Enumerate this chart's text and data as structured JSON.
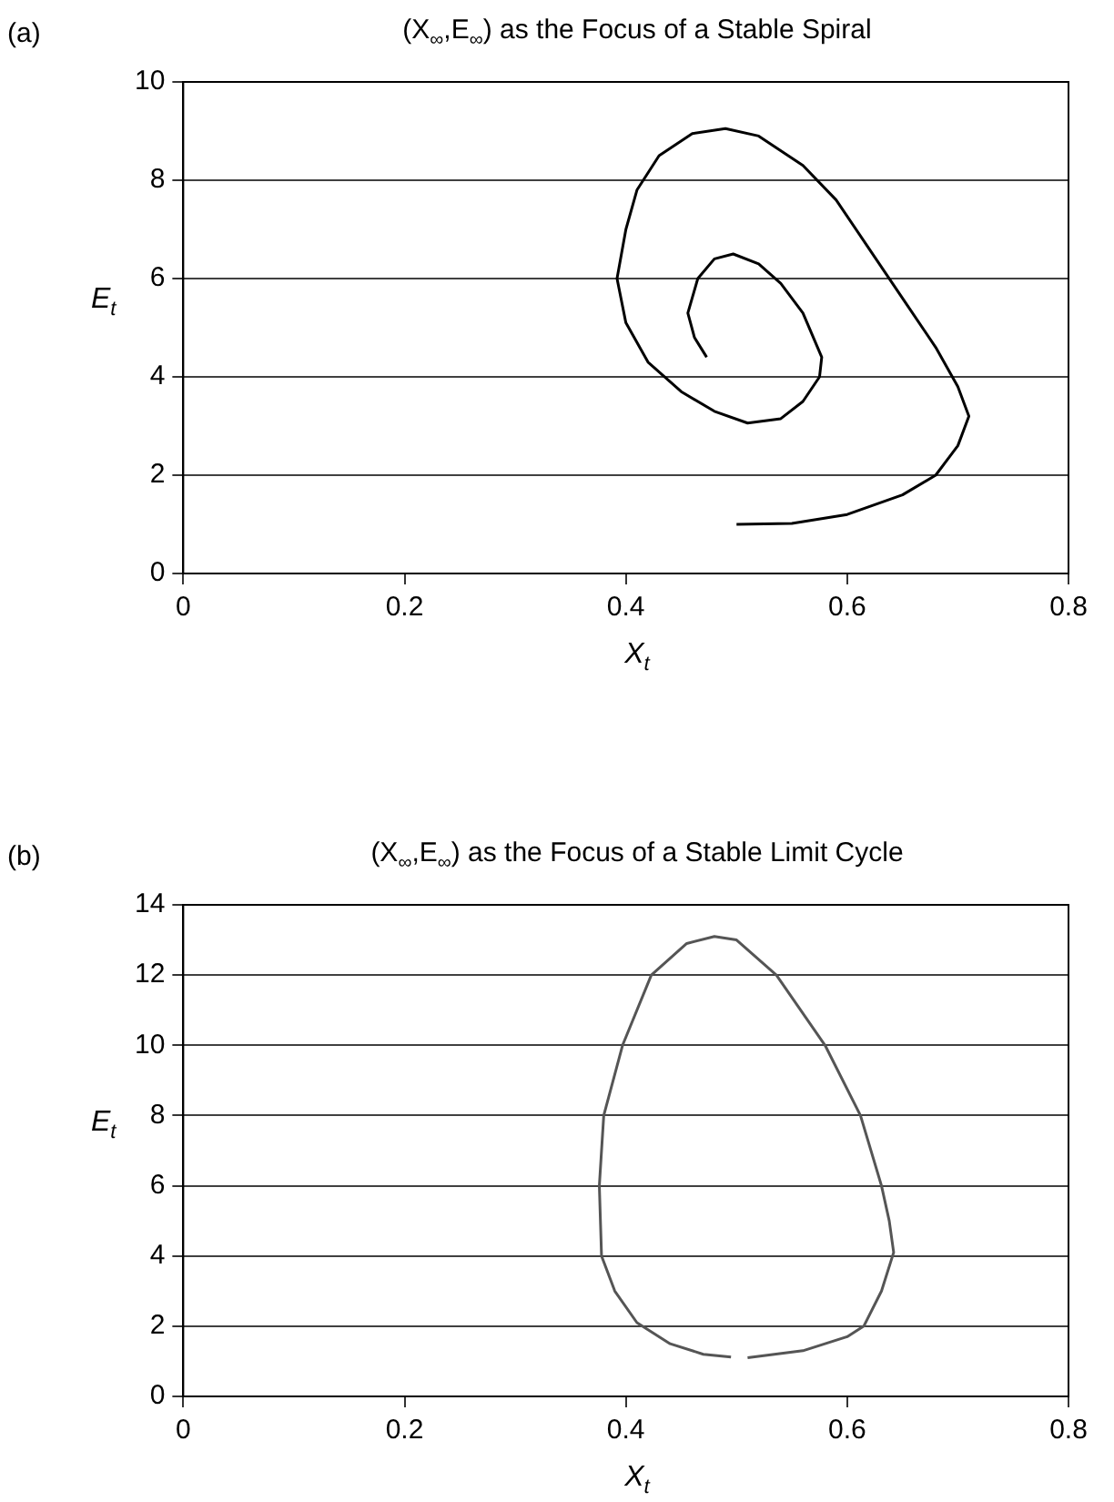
{
  "chart_data": [
    {
      "type": "line",
      "title": "(X$_{∞}$,E$_{∞}$) as the Focus of a Stable Spiral",
      "xlabel": "X$_{t}$",
      "ylabel": "E$_{t}$",
      "annotations": [
        "(a)"
      ],
      "xlim": [
        0,
        0.8
      ],
      "xticks": [
        0,
        0.2,
        0.4,
        0.6,
        0.8
      ],
      "ylim": [
        0,
        10
      ],
      "yticks": [
        0,
        2,
        4,
        6,
        8,
        10
      ],
      "grid": "y",
      "legend": false,
      "marker": "none",
      "line_style": "solid",
      "series": [
        {
          "color": "#000000",
          "x": [
            0.5,
            0.55,
            0.6,
            0.65,
            0.68,
            0.7,
            0.71,
            0.7,
            0.68,
            0.65,
            0.62,
            0.59,
            0.56,
            0.52,
            0.49,
            0.46,
            0.43,
            0.41,
            0.4,
            0.392,
            0.4,
            0.42,
            0.45,
            0.48,
            0.51,
            0.54,
            0.56,
            0.575,
            0.577,
            0.56,
            0.54,
            0.52,
            0.497,
            0.48,
            0.465,
            0.456,
            0.462,
            0.473
          ],
          "values": [
            1.0,
            1.02,
            1.2,
            1.6,
            2.0,
            2.6,
            3.2,
            3.8,
            4.6,
            5.6,
            6.6,
            7.6,
            8.3,
            8.9,
            9.05,
            8.95,
            8.5,
            7.8,
            7.0,
            6.0,
            5.1,
            4.3,
            3.7,
            3.3,
            3.06,
            3.15,
            3.5,
            4.0,
            4.4,
            5.3,
            5.9,
            6.3,
            6.5,
            6.4,
            6.0,
            5.3,
            4.8,
            4.4
          ]
        }
      ]
    },
    {
      "type": "line",
      "title": "(X$_{∞}$,E$_{∞}$) as the Focus of a Stable Limit Cycle",
      "xlabel": "X$_{t}$",
      "ylabel": "E$_{t}$",
      "annotations": [
        "(b)"
      ],
      "xlim": [
        0,
        0.8
      ],
      "xticks": [
        0,
        0.2,
        0.4,
        0.6,
        0.8
      ],
      "ylim": [
        0,
        14
      ],
      "yticks": [
        0,
        2,
        4,
        6,
        8,
        10,
        12,
        14
      ],
      "grid": "y",
      "legend": false,
      "marker": "none",
      "line_style": "solid",
      "series": [
        {
          "color": "#555555",
          "x": [
            0.51,
            0.56,
            0.6,
            0.615,
            0.631,
            0.642,
            0.638,
            0.631,
            0.612,
            0.58,
            0.536,
            0.5,
            0.48,
            0.455,
            0.423,
            0.397,
            0.38,
            0.376,
            0.378,
            0.39,
            0.41,
            0.44,
            0.47,
            0.495
          ],
          "values": [
            1.1,
            1.3,
            1.7,
            2.0,
            3.0,
            4.1,
            5.0,
            6.0,
            8.0,
            10.0,
            12.0,
            13.0,
            13.1,
            12.9,
            12.0,
            10.0,
            8.0,
            6.0,
            4.0,
            3.0,
            2.1,
            1.5,
            1.2,
            1.12
          ]
        }
      ]
    }
  ]
}
